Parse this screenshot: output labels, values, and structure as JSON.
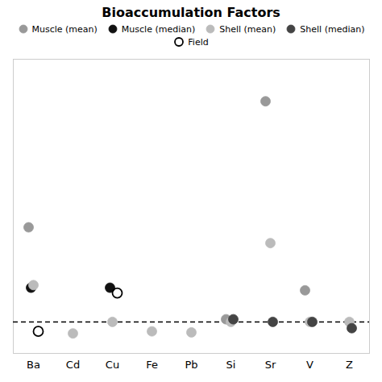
{
  "chart_data": {
    "type": "scatter",
    "title": "Bioaccumulation Factors",
    "categories": [
      "Ba",
      "Cd",
      "Cu",
      "Fe",
      "Pb",
      "Si",
      "Sr",
      "V",
      "Z"
    ],
    "series": [
      {
        "name": "Muscle (mean)",
        "color": "#999999",
        "marker": "circle",
        "values": [
          2.8,
          null,
          null,
          null,
          null,
          1.05,
          5.2,
          1.6,
          null
        ]
      },
      {
        "name": "Muscle (median)",
        "color": "#111111",
        "marker": "circle",
        "values": [
          1.65,
          null,
          1.65,
          null,
          null,
          null,
          null,
          null,
          null
        ]
      },
      {
        "name": "Shell (mean)",
        "color": "#bbbbbb",
        "marker": "circle",
        "values": [
          1.7,
          0.78,
          1.0,
          0.82,
          0.8,
          1.0,
          2.5,
          1.0,
          1.0
        ]
      },
      {
        "name": "Shell (median)",
        "color": "#444444",
        "marker": "circle",
        "values": [
          null,
          null,
          null,
          null,
          null,
          1.05,
          1.0,
          1.0,
          0.88
        ]
      },
      {
        "name": "Field",
        "color": "#000000",
        "marker": "open_circle",
        "values": [
          0.82,
          null,
          1.55,
          null,
          null,
          null,
          null,
          null,
          null
        ]
      }
    ],
    "reference_line": {
      "y": 1.0,
      "line_style": "dashed",
      "color": "#000000"
    },
    "ylim": [
      0.4,
      6.0
    ],
    "tick_labels": "x",
    "grid": false
  }
}
